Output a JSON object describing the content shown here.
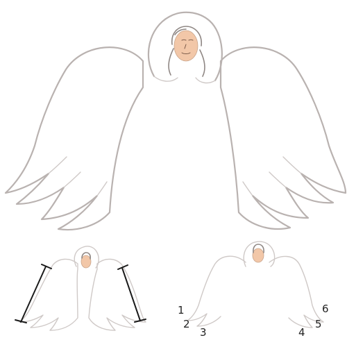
{
  "drawing": {
    "skin_color": "#f2c7a8",
    "pencil_color": "#b9b2b0",
    "ink_color": "#1a1a1a",
    "step_numbers": [
      "1",
      "2",
      "3",
      "4",
      "5",
      "6"
    ]
  }
}
